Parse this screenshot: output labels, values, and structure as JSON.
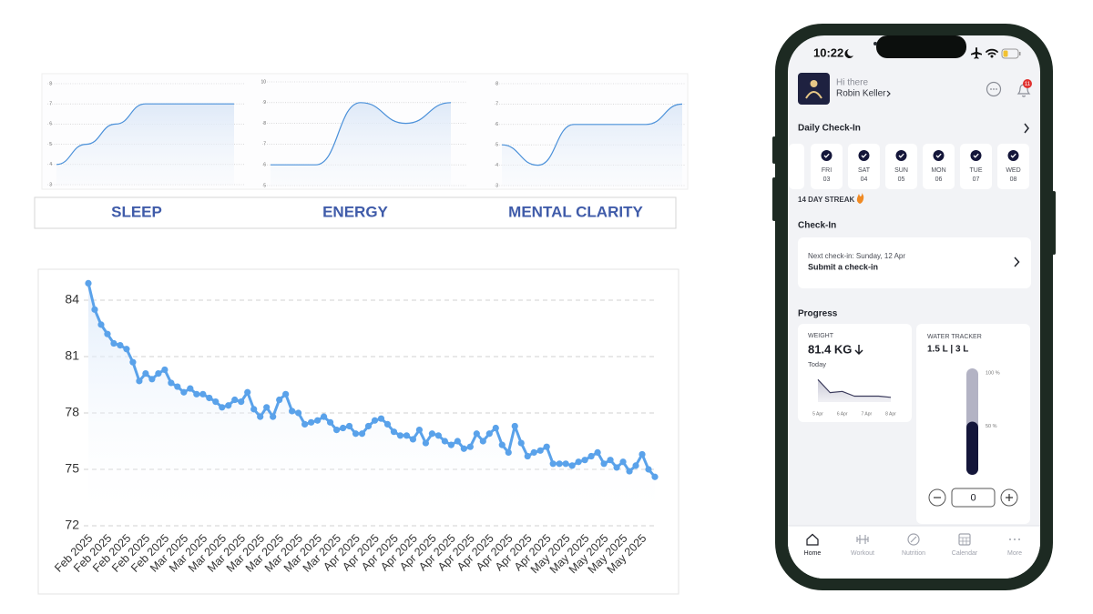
{
  "chart_data": [
    {
      "type": "line",
      "title": "SLEEP",
      "values": [
        4,
        5,
        6,
        7,
        7,
        7,
        7
      ],
      "ylim": [
        3,
        8
      ],
      "yticks": [
        3,
        4,
        5,
        6,
        7,
        8
      ],
      "grid": true,
      "color": "#4a90d9"
    },
    {
      "type": "line",
      "title": "ENERGY",
      "values": [
        6,
        6,
        9,
        8,
        9
      ],
      "ylim": [
        5,
        10
      ],
      "yticks": [
        5,
        6,
        7,
        8,
        9,
        10
      ],
      "grid": true,
      "color": "#4a90d9"
    },
    {
      "type": "line",
      "title": "MENTAL CLARITY",
      "values": [
        5,
        4,
        6,
        6,
        6,
        7
      ],
      "ylim": [
        3,
        8
      ],
      "yticks": [
        3,
        4,
        5,
        6,
        7,
        8
      ],
      "grid": true,
      "color": "#4a90d9"
    },
    {
      "type": "line",
      "categories": [
        "Feb 2025",
        null,
        null,
        "Feb 2025",
        null,
        null,
        "Feb 2025",
        null,
        null,
        "Feb 2025",
        null,
        null,
        "Feb 2025",
        null,
        null,
        "Mar 2025",
        null,
        null,
        "Mar 2025",
        null,
        null,
        "Mar 2025",
        null,
        null,
        "Mar 2025",
        null,
        null,
        "Mar 2025",
        null,
        null,
        "Mar 2025",
        null,
        null,
        "Mar 2025",
        null,
        null,
        "Mar 2025",
        null,
        null,
        "Mar 2025",
        null,
        null,
        "Apr 2025",
        null,
        null,
        "Apr 2025",
        null,
        null,
        "Apr 2025",
        null,
        null,
        "Apr 2025",
        null,
        null,
        "Apr 2025",
        null,
        null,
        "Apr 2025",
        null,
        null,
        "Apr 2025",
        null,
        null,
        "Apr 2025",
        null,
        null,
        "Apr 2025",
        null,
        null,
        "Apr 2025",
        null,
        null,
        "Apr 2025",
        null,
        null,
        "May 2025",
        null,
        null,
        "May 2025",
        null,
        null,
        "May 2025",
        null,
        null,
        "May 2025",
        null,
        null,
        "May 2025",
        null,
        null
      ],
      "values": [
        84.9,
        83.5,
        82.7,
        82.2,
        81.7,
        81.6,
        81.4,
        80.7,
        79.7,
        80.1,
        79.8,
        80.1,
        80.3,
        79.6,
        79.4,
        79.1,
        79.3,
        79.0,
        79.0,
        78.8,
        78.6,
        78.3,
        78.4,
        78.7,
        78.6,
        79.1,
        78.2,
        77.8,
        78.3,
        77.8,
        78.7,
        79.0,
        78.1,
        78.0,
        77.4,
        77.5,
        77.6,
        77.8,
        77.5,
        77.1,
        77.2,
        77.3,
        76.9,
        76.9,
        77.3,
        77.6,
        77.7,
        77.4,
        77.0,
        76.8,
        76.8,
        76.6,
        77.1,
        76.4,
        76.9,
        76.8,
        76.5,
        76.3,
        76.5,
        76.1,
        76.2,
        76.9,
        76.5,
        76.9,
        77.2,
        76.3,
        75.9,
        77.3,
        76.4,
        75.7,
        75.9,
        76.0,
        76.2,
        75.3,
        75.3,
        75.3,
        75.2,
        75.4,
        75.5,
        75.7,
        75.9,
        75.3,
        75.5,
        75.1,
        75.4,
        74.9,
        75.2,
        75.8,
        75.0,
        74.6
      ],
      "ylim": [
        72,
        85.5
      ],
      "yticks": [
        72,
        75,
        78,
        81,
        84
      ],
      "grid": true,
      "markers": true,
      "color": "#5aa2ea"
    },
    {
      "type": "area",
      "categories": [
        "5 Apr",
        null,
        "6 Apr",
        null,
        "7 Apr",
        null,
        "8 Apr"
      ],
      "values": [
        82.9,
        81.8,
        81.9,
        81.5,
        81.5,
        81.5,
        81.4
      ],
      "ylim": [
        81,
        83
      ],
      "color": "#3b3b5c"
    },
    {
      "type": "gauge",
      "values": [
        50
      ],
      "ylim": [
        0,
        100
      ],
      "yticks": [
        {
          "value": 100,
          "label": "100 %"
        },
        {
          "value": 50,
          "label": "50 %"
        }
      ],
      "color": "#14163a"
    }
  ],
  "app": {
    "status_time": "10:22",
    "greeting": "Hi there",
    "user_name": "Robin Keller",
    "notification_count": 11,
    "daily_checkin": {
      "title": "Daily Check-In",
      "days": [
        {
          "day": "FRI",
          "date": "03"
        },
        {
          "day": "SAT",
          "date": "04"
        },
        {
          "day": "SUN",
          "date": "05"
        },
        {
          "day": "MON",
          "date": "06"
        },
        {
          "day": "TUE",
          "date": "07"
        },
        {
          "day": "WED",
          "date": "08"
        }
      ],
      "streak": "14 DAY STREAK"
    },
    "checkin": {
      "title": "Check-In",
      "next": "Next check-in: Sunday, 12 Apr",
      "action": "Submit a check-in"
    },
    "progress": {
      "title": "Progress",
      "weight": {
        "label": "WEIGHT",
        "value": "81.4 KG",
        "period": "Today"
      },
      "water": {
        "label": "WATER TRACKER",
        "amount": "1.5 L | 3 L",
        "input": 0
      }
    },
    "nav": [
      "Home",
      "Workout",
      "Nutrition",
      "Calendar",
      "More"
    ]
  }
}
